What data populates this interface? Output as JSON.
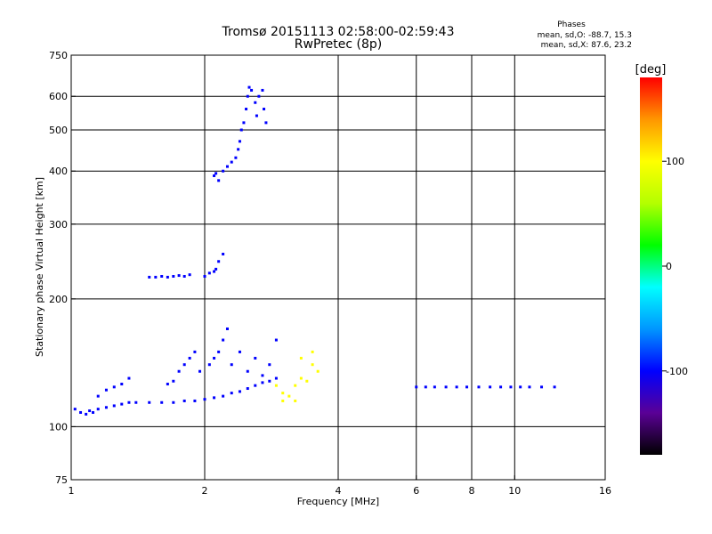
{
  "chart_data": {
    "type": "scatter",
    "title": "Tromsø 20151113 02:58:00-02:59:43",
    "subtitle": "RwPretec (8p)",
    "xlabel": "Frequency [MHz]",
    "ylabel": "Stationary phase Virtual Height [km]",
    "x_scale": "log",
    "y_scale": "log",
    "xlim": [
      1,
      16
    ],
    "ylim": [
      75,
      750
    ],
    "x_ticks": [
      1,
      2,
      4,
      6,
      8,
      10,
      16
    ],
    "x_ticklabels": [
      "1",
      "2",
      "4",
      "6",
      "8",
      "10",
      "16"
    ],
    "y_ticks": [
      75,
      100,
      200,
      300,
      400,
      500,
      600,
      750
    ],
    "y_ticklabels": [
      "75",
      "100",
      "200",
      "300",
      "400",
      "500",
      "600",
      "750"
    ],
    "x_gridlines": [
      2,
      4,
      6,
      8,
      10
    ],
    "y_gridlines": [
      100,
      200,
      300,
      400,
      500,
      600
    ],
    "grid": true,
    "phases_box": {
      "title": "Phases",
      "line1": "mean, sd,O: -88.7, 15.3",
      "line2": "mean, sd,X:  87.6, 23.2"
    },
    "colorbar": {
      "label": "[deg]",
      "range": [
        -180,
        180
      ],
      "ticks": [
        100,
        0,
        -100
      ],
      "ticklabels": [
        "100",
        "0",
        "-100"
      ],
      "colors": [
        "#000000",
        "#5a0096",
        "#0000ff",
        "#0096ff",
        "#00ffff",
        "#00ff00",
        "#b4ff00",
        "#ffff00",
        "#ff9600",
        "#ff0000"
      ]
    },
    "traces": [
      {
        "name": "low-band-trace",
        "phase": -100,
        "points": [
          [
            1.02,
            110
          ],
          [
            1.05,
            108
          ],
          [
            1.08,
            107
          ],
          [
            1.1,
            109
          ],
          [
            1.12,
            108
          ],
          [
            1.15,
            110
          ],
          [
            1.2,
            111
          ],
          [
            1.25,
            112
          ],
          [
            1.3,
            113
          ],
          [
            1.35,
            114
          ],
          [
            1.4,
            114
          ],
          [
            1.5,
            114
          ],
          [
            1.6,
            114
          ],
          [
            1.7,
            114
          ],
          [
            1.8,
            115
          ],
          [
            1.9,
            115
          ],
          [
            2.0,
            116
          ],
          [
            2.1,
            117
          ],
          [
            2.2,
            118
          ],
          [
            2.3,
            120
          ],
          [
            2.4,
            121
          ],
          [
            2.5,
            123
          ],
          [
            2.6,
            125
          ],
          [
            2.7,
            127
          ],
          [
            2.8,
            128
          ],
          [
            2.9,
            130
          ]
        ]
      },
      {
        "name": "low-band-spread",
        "phase": -100,
        "points": [
          [
            1.15,
            118
          ],
          [
            1.2,
            122
          ],
          [
            1.25,
            124
          ],
          [
            1.3,
            126
          ],
          [
            1.35,
            130
          ],
          [
            1.65,
            126
          ],
          [
            1.7,
            128
          ],
          [
            1.75,
            135
          ],
          [
            1.8,
            140
          ],
          [
            1.85,
            145
          ],
          [
            1.9,
            150
          ],
          [
            1.95,
            135
          ],
          [
            2.05,
            140
          ],
          [
            2.1,
            145
          ],
          [
            2.15,
            150
          ],
          [
            2.2,
            160
          ],
          [
            2.25,
            170
          ],
          [
            2.3,
            140
          ],
          [
            2.4,
            150
          ],
          [
            2.5,
            135
          ],
          [
            2.6,
            145
          ],
          [
            2.7,
            132
          ],
          [
            2.8,
            140
          ],
          [
            2.9,
            160
          ]
        ]
      },
      {
        "name": "yellow-cluster",
        "phase": 100,
        "points": [
          [
            2.9,
            125
          ],
          [
            3.0,
            120
          ],
          [
            3.1,
            118
          ],
          [
            3.2,
            125
          ],
          [
            3.3,
            130
          ],
          [
            3.4,
            128
          ],
          [
            3.5,
            140
          ],
          [
            3.6,
            135
          ],
          [
            3.3,
            145
          ],
          [
            3.5,
            150
          ],
          [
            3.0,
            115
          ],
          [
            3.2,
            115
          ]
        ]
      },
      {
        "name": "mid-trace",
        "phase": -100,
        "points": [
          [
            1.5,
            225
          ],
          [
            1.55,
            225
          ],
          [
            1.6,
            226
          ],
          [
            1.65,
            225
          ],
          [
            1.7,
            226
          ],
          [
            1.75,
            227
          ],
          [
            1.8,
            226
          ],
          [
            1.85,
            228
          ],
          [
            2.0,
            226
          ],
          [
            2.05,
            230
          ],
          [
            2.1,
            232
          ],
          [
            2.12,
            235
          ],
          [
            2.15,
            245
          ],
          [
            2.2,
            255
          ]
        ]
      },
      {
        "name": "f-layer-trace",
        "phase": -100,
        "points": [
          [
            2.1,
            390
          ],
          [
            2.12,
            395
          ],
          [
            2.15,
            380
          ],
          [
            2.2,
            400
          ],
          [
            2.25,
            410
          ],
          [
            2.3,
            420
          ],
          [
            2.35,
            430
          ],
          [
            2.38,
            450
          ],
          [
            2.4,
            470
          ],
          [
            2.42,
            500
          ],
          [
            2.45,
            520
          ],
          [
            2.48,
            560
          ],
          [
            2.5,
            600
          ],
          [
            2.52,
            630
          ],
          [
            2.55,
            620
          ],
          [
            2.6,
            580
          ],
          [
            2.62,
            540
          ],
          [
            2.65,
            600
          ],
          [
            2.7,
            620
          ],
          [
            2.72,
            560
          ],
          [
            2.75,
            520
          ]
        ]
      },
      {
        "name": "high-band-trace",
        "phase": -100,
        "points": [
          [
            6.0,
            124
          ],
          [
            6.3,
            124
          ],
          [
            6.6,
            124
          ],
          [
            7.0,
            124
          ],
          [
            7.4,
            124
          ],
          [
            7.8,
            124
          ],
          [
            8.3,
            124
          ],
          [
            8.8,
            124
          ],
          [
            9.3,
            124
          ],
          [
            9.8,
            124
          ],
          [
            10.3,
            124
          ],
          [
            10.8,
            124
          ],
          [
            11.5,
            124
          ],
          [
            12.3,
            124
          ]
        ]
      }
    ]
  }
}
